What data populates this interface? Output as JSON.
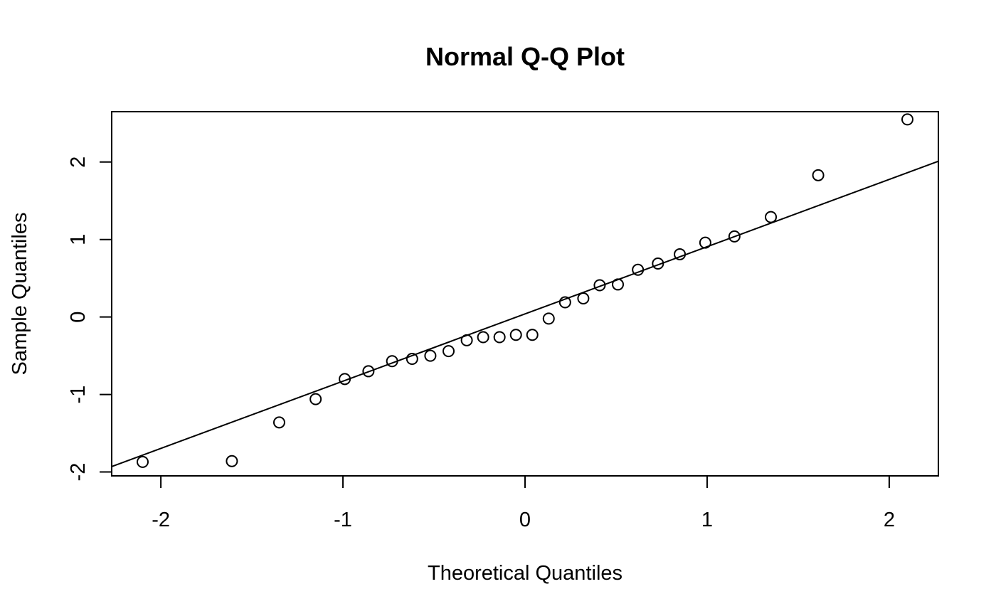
{
  "chart_data": {
    "type": "scatter",
    "title": "Normal Q-Q Plot",
    "xlabel": "Theoretical Quantiles",
    "ylabel": "Sample Quantiles",
    "xlim": [
      -2.27,
      2.27
    ],
    "ylim": [
      -2.05,
      2.65
    ],
    "xticks": [
      -2,
      -1,
      0,
      1,
      2
    ],
    "yticks": [
      -2,
      -1,
      0,
      1,
      2
    ],
    "xtick_labels": [
      "-2",
      "-1",
      "0",
      "1",
      "2"
    ],
    "ytick_labels": [
      "-2",
      "-1",
      "0",
      "1",
      "2"
    ],
    "grid": false,
    "legend": false,
    "points": [
      {
        "x": -2.1,
        "y": -1.87
      },
      {
        "x": -1.61,
        "y": -1.86
      },
      {
        "x": -1.35,
        "y": -1.36
      },
      {
        "x": -1.15,
        "y": -1.06
      },
      {
        "x": -0.99,
        "y": -0.8
      },
      {
        "x": -0.86,
        "y": -0.7
      },
      {
        "x": -0.73,
        "y": -0.57
      },
      {
        "x": -0.62,
        "y": -0.54
      },
      {
        "x": -0.52,
        "y": -0.5
      },
      {
        "x": -0.42,
        "y": -0.44
      },
      {
        "x": -0.32,
        "y": -0.3
      },
      {
        "x": -0.23,
        "y": -0.26
      },
      {
        "x": -0.14,
        "y": -0.26
      },
      {
        "x": -0.05,
        "y": -0.23
      },
      {
        "x": 0.04,
        "y": -0.23
      },
      {
        "x": 0.13,
        "y": -0.02
      },
      {
        "x": 0.22,
        "y": 0.19
      },
      {
        "x": 0.32,
        "y": 0.24
      },
      {
        "x": 0.41,
        "y": 0.41
      },
      {
        "x": 0.51,
        "y": 0.42
      },
      {
        "x": 0.62,
        "y": 0.61
      },
      {
        "x": 0.73,
        "y": 0.69
      },
      {
        "x": 0.85,
        "y": 0.81
      },
      {
        "x": 0.99,
        "y": 0.96
      },
      {
        "x": 1.15,
        "y": 1.04
      },
      {
        "x": 1.35,
        "y": 1.29
      },
      {
        "x": 1.61,
        "y": 1.83
      },
      {
        "x": 2.1,
        "y": 2.55
      }
    ],
    "reference_line": {
      "x": [
        -2.27,
        2.27
      ],
      "y": [
        -1.93,
        2.01
      ]
    }
  }
}
